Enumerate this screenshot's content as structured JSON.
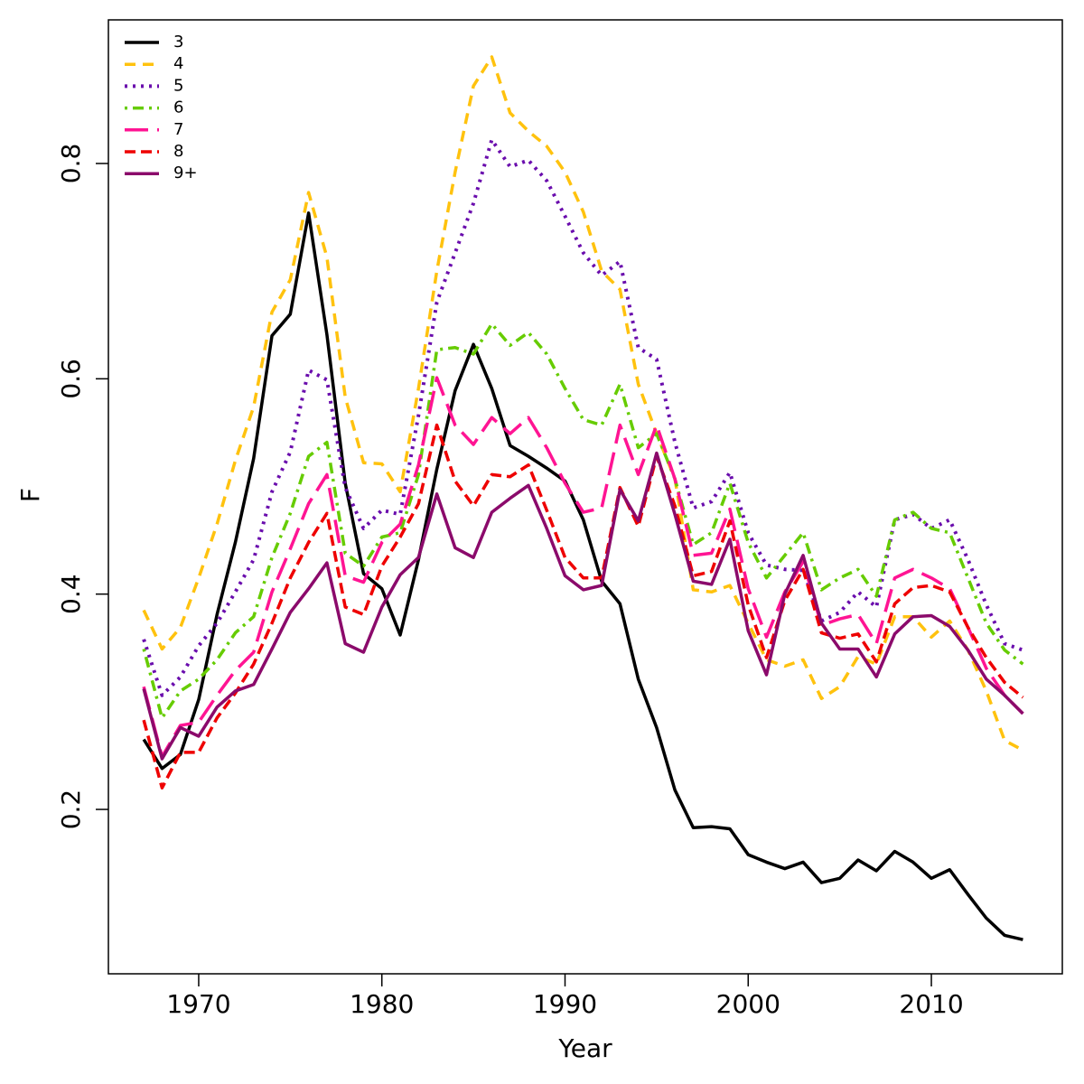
{
  "chart_data": {
    "type": "line",
    "xlabel": "Year",
    "ylabel": "F",
    "x": [
      1967,
      1968,
      1969,
      1970,
      1971,
      1972,
      1973,
      1974,
      1975,
      1976,
      1977,
      1978,
      1979,
      1980,
      1981,
      1982,
      1983,
      1984,
      1985,
      1986,
      1987,
      1988,
      1989,
      1990,
      1991,
      1992,
      1993,
      1994,
      1995,
      1996,
      1997,
      1998,
      1999,
      2000,
      2001,
      2002,
      2003,
      2004,
      2005,
      2006,
      2007,
      2008,
      2009,
      2010,
      2011,
      2012,
      2013,
      2014,
      2015
    ],
    "xlim": [
      1965.07,
      2017.15
    ],
    "xticks": [
      1970,
      1980,
      1990,
      2000,
      2010
    ],
    "ylim": [
      0.0473,
      0.9334
    ],
    "yticks": [
      0.2,
      0.4,
      0.6,
      0.8
    ],
    "legend": "top-left",
    "series": [
      {
        "name": "3",
        "color": "#000000",
        "linestyle": "solid",
        "values": [
          0.265,
          0.238,
          0.251,
          0.302,
          0.381,
          0.448,
          0.526,
          0.64,
          0.66,
          0.754,
          0.641,
          0.503,
          0.419,
          0.405,
          0.362,
          0.432,
          0.516,
          0.589,
          0.632,
          0.591,
          0.538,
          0.528,
          0.517,
          0.505,
          0.469,
          0.412,
          0.391,
          0.321,
          0.276,
          0.218,
          0.183,
          0.184,
          0.182,
          0.158,
          0.151,
          0.145,
          0.151,
          0.132,
          0.136,
          0.153,
          0.143,
          0.161,
          0.151,
          0.136,
          0.144,
          0.121,
          0.099,
          0.083,
          0.079
        ]
      },
      {
        "name": "4",
        "color": "#ffc20e",
        "linestyle": "dashed",
        "values": [
          0.385,
          0.349,
          0.369,
          0.415,
          0.465,
          0.524,
          0.574,
          0.662,
          0.692,
          0.773,
          0.713,
          0.583,
          0.522,
          0.521,
          0.495,
          0.591,
          0.7,
          0.792,
          0.872,
          0.899,
          0.847,
          0.83,
          0.816,
          0.792,
          0.755,
          0.7,
          0.683,
          0.595,
          0.549,
          0.507,
          0.404,
          0.402,
          0.408,
          0.373,
          0.339,
          0.333,
          0.339,
          0.303,
          0.314,
          0.342,
          0.335,
          0.379,
          0.379,
          0.36,
          0.375,
          0.348,
          0.31,
          0.264,
          0.255
        ]
      },
      {
        "name": "5",
        "color": "#6a0dad",
        "linestyle": "dotted",
        "values": [
          0.358,
          0.306,
          0.323,
          0.352,
          0.373,
          0.402,
          0.432,
          0.495,
          0.532,
          0.608,
          0.599,
          0.499,
          0.461,
          0.478,
          0.474,
          0.566,
          0.671,
          0.717,
          0.763,
          0.822,
          0.797,
          0.803,
          0.784,
          0.751,
          0.717,
          0.696,
          0.709,
          0.629,
          0.618,
          0.541,
          0.48,
          0.486,
          0.513,
          0.457,
          0.427,
          0.423,
          0.422,
          0.375,
          0.383,
          0.402,
          0.388,
          0.469,
          0.474,
          0.461,
          0.469,
          0.432,
          0.39,
          0.354,
          0.348
        ]
      },
      {
        "name": "6",
        "color": "#66cc00",
        "linestyle": "dotdash",
        "values": [
          0.349,
          0.285,
          0.31,
          0.321,
          0.339,
          0.364,
          0.379,
          0.434,
          0.475,
          0.528,
          0.541,
          0.438,
          0.426,
          0.453,
          0.457,
          0.511,
          0.627,
          0.629,
          0.623,
          0.651,
          0.631,
          0.643,
          0.623,
          0.591,
          0.562,
          0.557,
          0.595,
          0.536,
          0.549,
          0.507,
          0.446,
          0.457,
          0.503,
          0.448,
          0.415,
          0.436,
          0.457,
          0.404,
          0.415,
          0.423,
          0.398,
          0.469,
          0.476,
          0.461,
          0.457,
          0.415,
          0.373,
          0.348,
          0.335
        ]
      },
      {
        "name": "7",
        "color": "#ff1493",
        "linestyle": "longdash",
        "values": [
          0.314,
          0.249,
          0.278,
          0.281,
          0.306,
          0.329,
          0.346,
          0.402,
          0.442,
          0.484,
          0.511,
          0.417,
          0.411,
          0.448,
          0.465,
          0.52,
          0.601,
          0.557,
          0.539,
          0.564,
          0.549,
          0.564,
          0.536,
          0.503,
          0.476,
          0.48,
          0.557,
          0.511,
          0.557,
          0.507,
          0.436,
          0.438,
          0.479,
          0.405,
          0.36,
          0.402,
          0.43,
          0.371,
          0.377,
          0.381,
          0.354,
          0.415,
          0.423,
          0.415,
          0.405,
          0.369,
          0.331,
          0.306,
          0.289
        ]
      },
      {
        "name": "8",
        "color": "#ee0000",
        "linestyle": "shortdash",
        "values": [
          0.283,
          0.22,
          0.253,
          0.253,
          0.285,
          0.308,
          0.335,
          0.373,
          0.415,
          0.448,
          0.475,
          0.388,
          0.381,
          0.426,
          0.453,
          0.484,
          0.557,
          0.505,
          0.482,
          0.511,
          0.509,
          0.52,
          0.478,
          0.434,
          0.415,
          0.415,
          0.499,
          0.463,
          0.528,
          0.482,
          0.417,
          0.421,
          0.468,
          0.39,
          0.341,
          0.394,
          0.423,
          0.364,
          0.359,
          0.363,
          0.337,
          0.391,
          0.406,
          0.408,
          0.402,
          0.369,
          0.341,
          0.318,
          0.304
        ]
      },
      {
        "name": "9+",
        "color": "#8b0a6b",
        "linestyle": "solid",
        "values": [
          0.312,
          0.247,
          0.276,
          0.268,
          0.295,
          0.31,
          0.316,
          0.349,
          0.383,
          0.405,
          0.429,
          0.354,
          0.346,
          0.388,
          0.418,
          0.434,
          0.493,
          0.443,
          0.434,
          0.476,
          0.489,
          0.501,
          0.461,
          0.417,
          0.404,
          0.408,
          0.497,
          0.468,
          0.531,
          0.474,
          0.412,
          0.409,
          0.451,
          0.366,
          0.325,
          0.4,
          0.436,
          0.373,
          0.349,
          0.349,
          0.323,
          0.363,
          0.379,
          0.38,
          0.37,
          0.348,
          0.321,
          0.306,
          0.289
        ]
      }
    ]
  }
}
